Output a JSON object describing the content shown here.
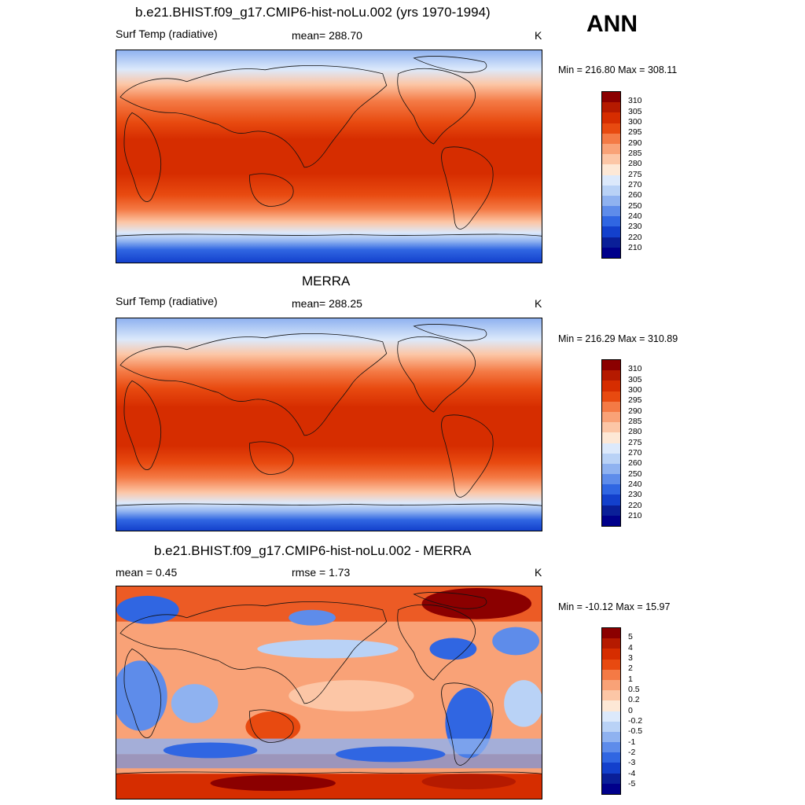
{
  "header": {
    "season": "ANN"
  },
  "panels": [
    {
      "title": "b.e21.BHIST.f09_g17.CMIP6-hist-noLu.002 (yrs 1970-1994)",
      "left_label": "Surf Temp (radiative)",
      "center_label": "mean= 288.70",
      "units": "K",
      "minmax": "Min = 216.80 Max = 308.11",
      "colorbar_labels": [
        "310",
        "305",
        "300",
        "295",
        "290",
        "285",
        "280",
        "275",
        "270",
        "260",
        "250",
        "240",
        "230",
        "220",
        "210"
      ],
      "colorbar_colors": [
        "#8b0000",
        "#b51a00",
        "#d62d00",
        "#e84a10",
        "#f47a45",
        "#f9a277",
        "#fcc6a6",
        "#fde8d6",
        "#dce9fb",
        "#b9d2f6",
        "#8fb2f0",
        "#5e8cea",
        "#3066e2",
        "#1340cc",
        "#0a1f98",
        "#00008b"
      ]
    },
    {
      "title": "MERRA",
      "left_label": "Surf Temp (radiative)",
      "center_label": "mean= 288.25",
      "units": "K",
      "minmax": "Min = 216.29 Max = 310.89",
      "colorbar_labels": [
        "310",
        "305",
        "300",
        "295",
        "290",
        "285",
        "280",
        "275",
        "270",
        "260",
        "250",
        "240",
        "230",
        "220",
        "210"
      ],
      "colorbar_colors": [
        "#8b0000",
        "#b51a00",
        "#d62d00",
        "#e84a10",
        "#f47a45",
        "#f9a277",
        "#fcc6a6",
        "#fde8d6",
        "#dce9fb",
        "#b9d2f6",
        "#8fb2f0",
        "#5e8cea",
        "#3066e2",
        "#1340cc",
        "#0a1f98",
        "#00008b"
      ]
    },
    {
      "title": "b.e21.BHIST.f09_g17.CMIP6-hist-noLu.002 - MERRA",
      "left_label": "mean =   0.45",
      "center_label": "rmse =   1.73",
      "units": "K",
      "minmax": "Min = -10.12 Max =  15.97",
      "colorbar_labels": [
        "5",
        "4",
        "3",
        "2",
        "1",
        "0.5",
        "0.2",
        "0",
        "-0.2",
        "-0.5",
        "-1",
        "-2",
        "-3",
        "-4",
        "-5"
      ],
      "colorbar_colors": [
        "#8b0000",
        "#b51a00",
        "#d62d00",
        "#e84a10",
        "#f47a45",
        "#f9a277",
        "#fcc6a6",
        "#fde8d6",
        "#dce9fb",
        "#b9d2f6",
        "#8fb2f0",
        "#5e8cea",
        "#3066e2",
        "#1340cc",
        "#0a1f98",
        "#00008b"
      ]
    }
  ]
}
